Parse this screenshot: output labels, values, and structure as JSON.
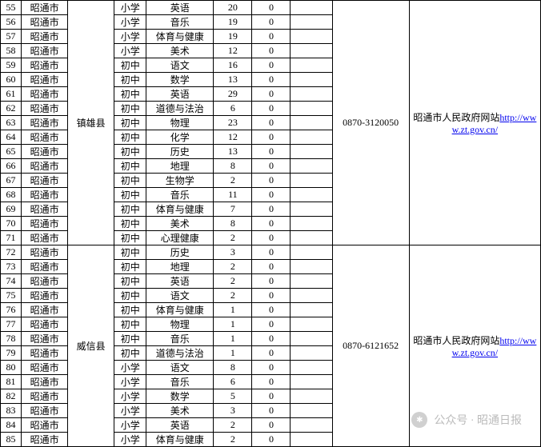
{
  "groups": [
    {
      "county": "镇雄县",
      "phone": "0870-3120050",
      "website_title": "昭通市人民政府网站",
      "website_url": "http://www.zt.gov.cn/",
      "rows": [
        {
          "idx": "55",
          "city": "昭通市",
          "stage": "小学",
          "subject": "英语",
          "n1": "20",
          "n2": "0"
        },
        {
          "idx": "56",
          "city": "昭通市",
          "stage": "小学",
          "subject": "音乐",
          "n1": "19",
          "n2": "0"
        },
        {
          "idx": "57",
          "city": "昭通市",
          "stage": "小学",
          "subject": "体育与健康",
          "n1": "19",
          "n2": "0"
        },
        {
          "idx": "58",
          "city": "昭通市",
          "stage": "小学",
          "subject": "美术",
          "n1": "12",
          "n2": "0"
        },
        {
          "idx": "59",
          "city": "昭通市",
          "stage": "初中",
          "subject": "语文",
          "n1": "16",
          "n2": "0"
        },
        {
          "idx": "60",
          "city": "昭通市",
          "stage": "初中",
          "subject": "数学",
          "n1": "13",
          "n2": "0"
        },
        {
          "idx": "61",
          "city": "昭通市",
          "stage": "初中",
          "subject": "英语",
          "n1": "29",
          "n2": "0"
        },
        {
          "idx": "62",
          "city": "昭通市",
          "stage": "初中",
          "subject": "道德与法治",
          "n1": "6",
          "n2": "0"
        },
        {
          "idx": "63",
          "city": "昭通市",
          "stage": "初中",
          "subject": "物理",
          "n1": "23",
          "n2": "0"
        },
        {
          "idx": "64",
          "city": "昭通市",
          "stage": "初中",
          "subject": "化学",
          "n1": "12",
          "n2": "0"
        },
        {
          "idx": "65",
          "city": "昭通市",
          "stage": "初中",
          "subject": "历史",
          "n1": "13",
          "n2": "0"
        },
        {
          "idx": "66",
          "city": "昭通市",
          "stage": "初中",
          "subject": "地理",
          "n1": "8",
          "n2": "0"
        },
        {
          "idx": "67",
          "city": "昭通市",
          "stage": "初中",
          "subject": "生物学",
          "n1": "2",
          "n2": "0"
        },
        {
          "idx": "68",
          "city": "昭通市",
          "stage": "初中",
          "subject": "音乐",
          "n1": "11",
          "n2": "0"
        },
        {
          "idx": "69",
          "city": "昭通市",
          "stage": "初中",
          "subject": "体育与健康",
          "n1": "7",
          "n2": "0"
        },
        {
          "idx": "70",
          "city": "昭通市",
          "stage": "初中",
          "subject": "美术",
          "n1": "8",
          "n2": "0"
        },
        {
          "idx": "71",
          "city": "昭通市",
          "stage": "初中",
          "subject": "心理健康",
          "n1": "2",
          "n2": "0"
        }
      ]
    },
    {
      "county": "威信县",
      "phone": "0870-6121652",
      "website_title": "昭通市人民政府网站",
      "website_url": "http://www.zt.gov.cn/",
      "rows": [
        {
          "idx": "72",
          "city": "昭通市",
          "stage": "初中",
          "subject": "历史",
          "n1": "3",
          "n2": "0"
        },
        {
          "idx": "73",
          "city": "昭通市",
          "stage": "初中",
          "subject": "地理",
          "n1": "2",
          "n2": "0"
        },
        {
          "idx": "74",
          "city": "昭通市",
          "stage": "初中",
          "subject": "英语",
          "n1": "2",
          "n2": "0"
        },
        {
          "idx": "75",
          "city": "昭通市",
          "stage": "初中",
          "subject": "语文",
          "n1": "2",
          "n2": "0"
        },
        {
          "idx": "76",
          "city": "昭通市",
          "stage": "初中",
          "subject": "体育与健康",
          "n1": "1",
          "n2": "0"
        },
        {
          "idx": "77",
          "city": "昭通市",
          "stage": "初中",
          "subject": "物理",
          "n1": "1",
          "n2": "0"
        },
        {
          "idx": "78",
          "city": "昭通市",
          "stage": "初中",
          "subject": "音乐",
          "n1": "1",
          "n2": "0"
        },
        {
          "idx": "79",
          "city": "昭通市",
          "stage": "初中",
          "subject": "道德与法治",
          "n1": "1",
          "n2": "0"
        },
        {
          "idx": "80",
          "city": "昭通市",
          "stage": "小学",
          "subject": "语文",
          "n1": "8",
          "n2": "0"
        },
        {
          "idx": "81",
          "city": "昭通市",
          "stage": "小学",
          "subject": "音乐",
          "n1": "6",
          "n2": "0"
        },
        {
          "idx": "82",
          "city": "昭通市",
          "stage": "小学",
          "subject": "数学",
          "n1": "5",
          "n2": "0"
        },
        {
          "idx": "83",
          "city": "昭通市",
          "stage": "小学",
          "subject": "美术",
          "n1": "3",
          "n2": "0"
        },
        {
          "idx": "84",
          "city": "昭通市",
          "stage": "小学",
          "subject": "英语",
          "n1": "2",
          "n2": "0"
        },
        {
          "idx": "85",
          "city": "昭通市",
          "stage": "小学",
          "subject": "体育与健康",
          "n1": "2",
          "n2": "0"
        }
      ]
    }
  ],
  "watermark": {
    "text": "公众号 · 昭通日报",
    "icon_glyph": "✱"
  }
}
